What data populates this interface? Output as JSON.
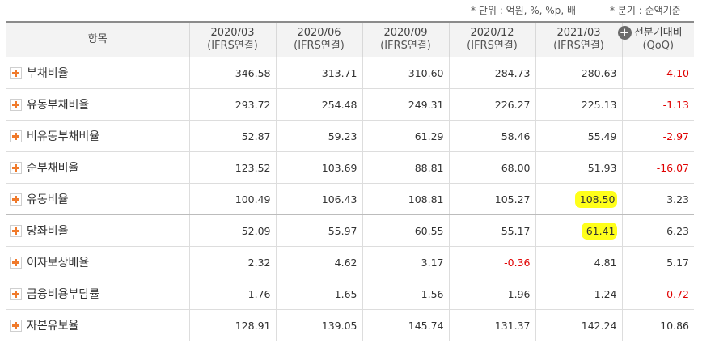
{
  "units": {
    "unit_text": "* 단위 : 억원, %, %p, 배",
    "quarter_text": "* 분기 : 순액기준"
  },
  "header": {
    "item_label": "항목",
    "periods": [
      {
        "date": "2020/03",
        "basis": "(IFRS연결)"
      },
      {
        "date": "2020/06",
        "basis": "(IFRS연결)"
      },
      {
        "date": "2020/09",
        "basis": "(IFRS연결)"
      },
      {
        "date": "2020/12",
        "basis": "(IFRS연결)"
      },
      {
        "date": "2021/03",
        "basis": "(IFRS연결)"
      }
    ],
    "qoq_line1": "전분기대비",
    "qoq_line2": "(QoQ)"
  },
  "rows": [
    {
      "label": "부채비율",
      "values": [
        "346.58",
        "313.71",
        "310.60",
        "284.73",
        "280.63"
      ],
      "qoq": "-4.10"
    },
    {
      "label": "유동부채비율",
      "values": [
        "293.72",
        "254.48",
        "249.31",
        "226.27",
        "225.13"
      ],
      "qoq": "-1.13"
    },
    {
      "label": "비유동부채비율",
      "values": [
        "52.87",
        "59.23",
        "61.29",
        "58.46",
        "55.49"
      ],
      "qoq": "-2.97"
    },
    {
      "label": "순부채비율",
      "values": [
        "123.52",
        "103.69",
        "88.81",
        "68.00",
        "51.93"
      ],
      "qoq": "-16.07"
    },
    {
      "label": "유동비율",
      "values": [
        "100.49",
        "106.43",
        "108.81",
        "105.27",
        "108.50"
      ],
      "qoq": "3.23"
    },
    {
      "label": "당좌비율",
      "values": [
        "52.09",
        "55.97",
        "60.55",
        "55.17",
        "61.41"
      ],
      "qoq": "6.23"
    },
    {
      "label": "이자보상배율",
      "values": [
        "2.32",
        "4.62",
        "3.17",
        "-0.36",
        "4.81"
      ],
      "qoq": "5.17"
    },
    {
      "label": "금융비용부담률",
      "values": [
        "1.76",
        "1.65",
        "1.56",
        "1.96",
        "1.24"
      ],
      "qoq": "-0.72"
    },
    {
      "label": "자본유보율",
      "values": [
        "128.91",
        "139.05",
        "145.74",
        "131.37",
        "142.24"
      ],
      "qoq": "10.86"
    }
  ],
  "highlight_color": "#ffff1a",
  "negative_color": "#e00000",
  "icons": {
    "expand": "plus-expand-icon",
    "add_column": "plus-circle-icon"
  }
}
